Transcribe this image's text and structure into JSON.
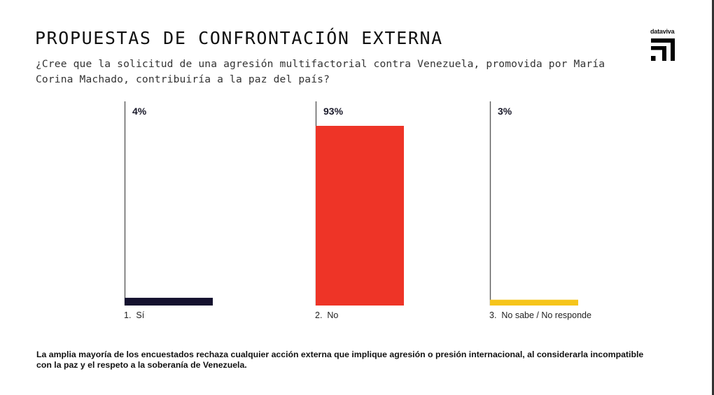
{
  "header": {
    "title": "PROPUESTAS DE CONFRONTACIÓN EXTERNA",
    "question": "¿Cree que la solicitud de una agresión multifactorial contra Venezuela, promovida por María Corina Machado, contribuiría a la paz del país?"
  },
  "brand": {
    "name": "dataviva",
    "icon": "dataviva-logo-icon"
  },
  "chart_data": {
    "type": "bar",
    "title": "PROPUESTAS DE CONFRONTACIÓN EXTERNA",
    "subtitle": "¿Cree que la solicitud de una agresión multifactorial contra Venezuela, promovida por María Corina Machado, contribuiría a la paz del país?",
    "categories": [
      "1. Sí",
      "2. No",
      "3. No sabe / No responde"
    ],
    "values": [
      4,
      93,
      3
    ],
    "value_labels": [
      "4%",
      "93%",
      "3%"
    ],
    "colors": [
      "#15122f",
      "#ee3427",
      "#f6c51b"
    ],
    "unit": "%",
    "xlabel": "",
    "ylabel": "",
    "ylim": [
      0,
      100
    ],
    "grid": false,
    "legend": "none"
  },
  "footnote": "La amplia mayoría de los encuestados rechaza cualquier acción externa que implique agresión o presión internacional, al considerarla incompatible con la paz y el respeto a la soberanía de Venezuela."
}
